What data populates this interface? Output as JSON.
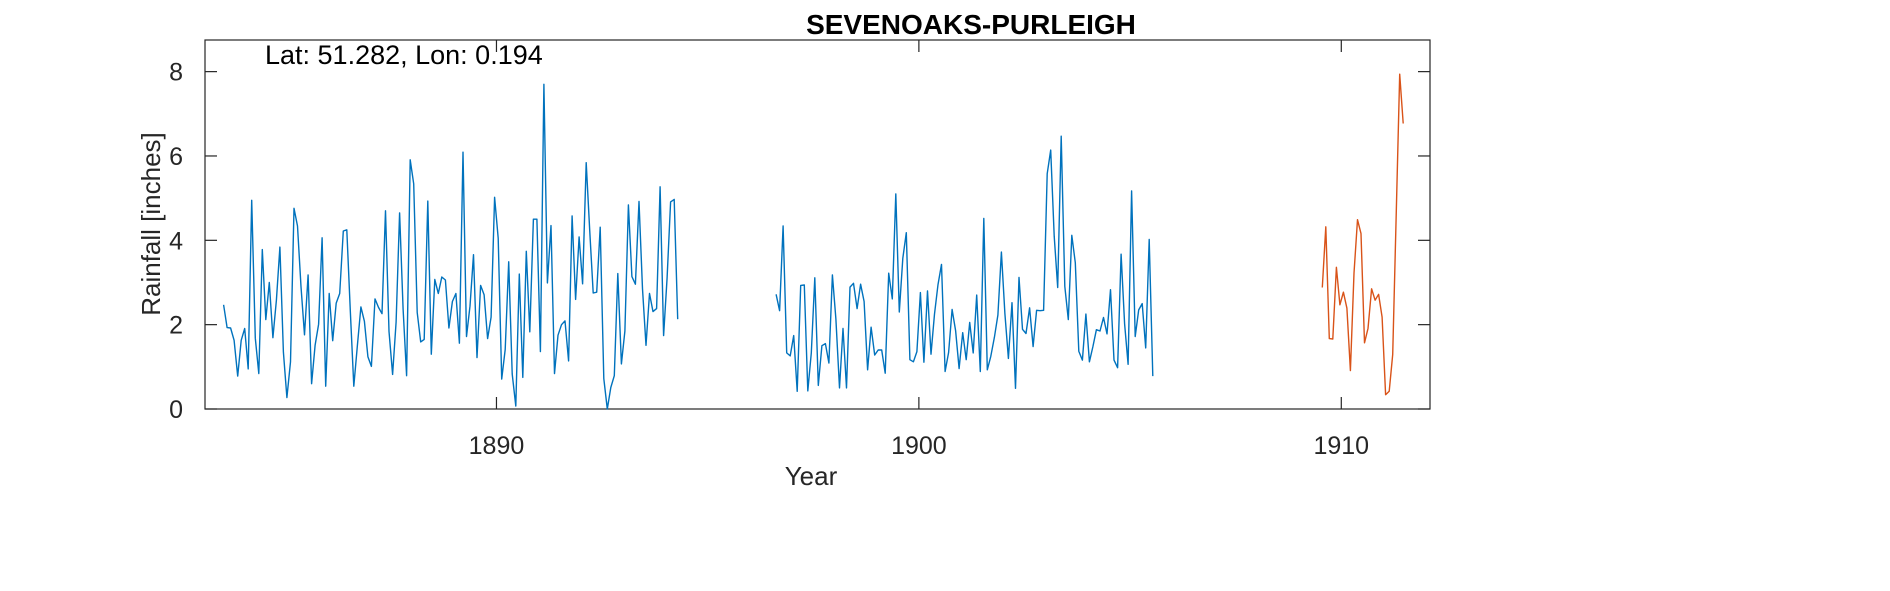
{
  "chart_data": {
    "type": "line",
    "title": "SEVENOAKS-PURLEIGH",
    "annotation": "Lat: 51.282, Lon: 0.194",
    "xlabel": "Year",
    "ylabel": "Rainfall [inches]",
    "xlim": [
      1883.1,
      1912.1
    ],
    "ylim": [
      0,
      8.75
    ],
    "xticks": [
      1890,
      1900,
      1910
    ],
    "yticks": [
      0,
      2,
      4,
      6,
      8
    ],
    "grid": false,
    "series": [
      {
        "color": "#0072BD",
        "x_start": 1883.54,
        "x_step": 0.0833333,
        "values": [
          2.47,
          1.93,
          1.92,
          1.63,
          0.78,
          1.63,
          1.91,
          0.95,
          4.95,
          1.68,
          0.84,
          3.78,
          2.12,
          3.0,
          1.69,
          2.58,
          3.84,
          1.35,
          0.27,
          1.12,
          4.76,
          4.34,
          2.9,
          1.76,
          3.18,
          0.6,
          1.51,
          2.01,
          4.06,
          0.54,
          2.74,
          1.62,
          2.51,
          2.74,
          4.22,
          4.25,
          2.33,
          0.54,
          1.51,
          2.42,
          2.08,
          1.24,
          1.01,
          2.61,
          2.41,
          2.26,
          4.7,
          1.84,
          0.82,
          2.06,
          4.65,
          2.37,
          0.79,
          5.91,
          5.34,
          2.29,
          1.59,
          1.65,
          4.93,
          1.3,
          3.07,
          2.74,
          3.13,
          3.06,
          1.92,
          2.55,
          2.74,
          1.56,
          6.09,
          1.72,
          2.44,
          3.66,
          1.22,
          2.93,
          2.71,
          1.67,
          2.18,
          5.02,
          4.05,
          0.71,
          1.41,
          3.49,
          0.83,
          0.07,
          3.2,
          0.75,
          3.74,
          1.83,
          4.5,
          4.5,
          1.36,
          7.7,
          2.99,
          4.35,
          0.84,
          1.75,
          2.0,
          2.09,
          1.14,
          4.58,
          2.6,
          4.08,
          2.97,
          5.84,
          4.24,
          2.75,
          2.77,
          4.31,
          0.72,
          0.0,
          0.51,
          0.79,
          3.21,
          1.07,
          1.85,
          4.84,
          3.14,
          2.96,
          4.92,
          2.85,
          1.51,
          2.74,
          2.31,
          2.38,
          5.27,
          1.74,
          3.11,
          4.91,
          4.97,
          2.13
        ]
      },
      {
        "color": "#0072BD",
        "x_start": 1896.62,
        "x_step": 0.0833333,
        "values": [
          2.72,
          2.33,
          4.34,
          1.33,
          1.26,
          1.74,
          0.42,
          2.93,
          2.94,
          0.43,
          1.33,
          3.11,
          0.56,
          1.5,
          1.55,
          1.09,
          3.18,
          2.13,
          0.5,
          1.91,
          0.5,
          2.89,
          2.98,
          2.38,
          2.96,
          2.55,
          0.93,
          1.94,
          1.28,
          1.4,
          1.4,
          0.85,
          3.22,
          2.61,
          5.1,
          2.3,
          3.57,
          4.18,
          1.17,
          1.12,
          1.36,
          2.76,
          1.11,
          2.8,
          1.3,
          2.25,
          2.95,
          3.43,
          0.89,
          1.34,
          2.36,
          1.86,
          0.96,
          1.81,
          1.17,
          2.05,
          1.33,
          2.7,
          0.89,
          4.52,
          0.93,
          1.25,
          1.7,
          2.23,
          3.72,
          2.26,
          1.2,
          2.52,
          0.49,
          3.12,
          1.89,
          1.79,
          2.4,
          1.48,
          2.34,
          2.33,
          2.34,
          5.58,
          6.14,
          4.1,
          2.88,
          6.47,
          2.91,
          2.12,
          4.12,
          3.47,
          1.37,
          1.16,
          2.25,
          1.12,
          1.48,
          1.88,
          1.85,
          2.17,
          1.78,
          2.83,
          1.16,
          0.98,
          3.67,
          2.02,
          1.06,
          5.17,
          1.72,
          2.35,
          2.5,
          1.45,
          4.02,
          0.78
        ]
      },
      {
        "color": "#D95319",
        "x_start": 1909.55,
        "x_step": 0.0833333,
        "values": [
          2.88,
          4.32,
          1.67,
          1.66,
          3.36,
          2.47,
          2.77,
          2.39,
          0.91,
          3.22,
          4.49,
          4.16,
          1.57,
          1.91,
          2.85,
          2.58,
          2.72,
          2.18,
          0.34,
          0.42,
          1.29,
          4.6,
          7.94,
          6.77
        ]
      }
    ]
  }
}
